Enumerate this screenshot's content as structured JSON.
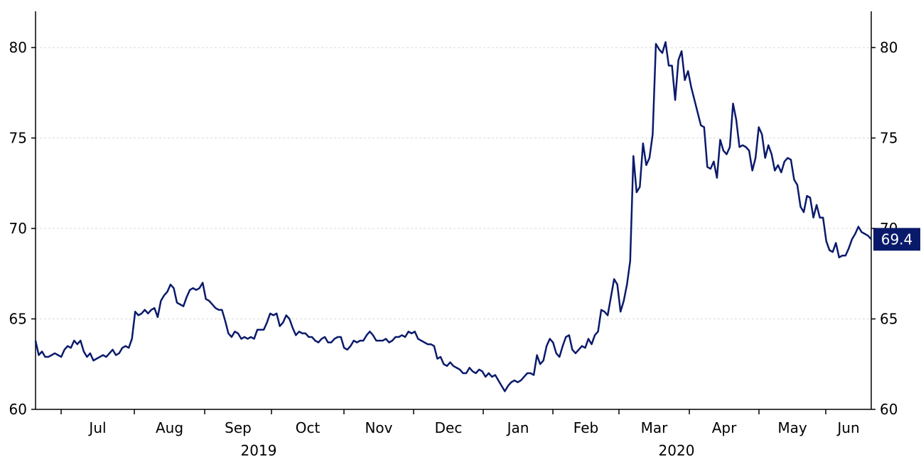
{
  "chart_data": {
    "type": "line",
    "title": "",
    "xlabel": "",
    "ylabel": "",
    "ylim": [
      60,
      82
    ],
    "y_ticks": [
      60,
      65,
      70,
      75,
      80
    ],
    "grid": true,
    "x_month_labels": [
      "Jul",
      "Aug",
      "Sep",
      "Oct",
      "Nov",
      "Dec",
      "Jan",
      "Feb",
      "Mar",
      "Apr",
      "May",
      "Jun"
    ],
    "x_year_labels": [
      "2019",
      "2020"
    ],
    "last_value_label": "69.4",
    "series": [
      {
        "color": "#0a1a6b",
        "values": [
          63.8,
          63.0,
          63.2,
          62.9,
          62.9,
          63.0,
          63.1,
          63.0,
          62.9,
          63.3,
          63.5,
          63.4,
          63.8,
          63.6,
          63.8,
          63.2,
          62.9,
          63.1,
          62.7,
          62.8,
          62.9,
          63.0,
          62.9,
          63.1,
          63.3,
          63.0,
          63.1,
          63.4,
          63.5,
          63.4,
          63.9,
          65.4,
          65.2,
          65.3,
          65.5,
          65.3,
          65.5,
          65.6,
          65.1,
          66.0,
          66.3,
          66.5,
          66.9,
          66.7,
          65.9,
          65.8,
          65.7,
          66.2,
          66.6,
          66.7,
          66.6,
          66.7,
          67.0,
          66.1,
          66.0,
          65.8,
          65.6,
          65.5,
          65.5,
          64.9,
          64.2,
          64.0,
          64.3,
          64.2,
          63.9,
          64.0,
          63.9,
          64.0,
          63.9,
          64.4,
          64.4,
          64.4,
          64.8,
          65.3,
          65.2,
          65.3,
          64.6,
          64.8,
          65.2,
          65.0,
          64.5,
          64.1,
          64.3,
          64.2,
          64.2,
          64.0,
          64.0,
          63.8,
          63.7,
          63.9,
          64.0,
          63.7,
          63.7,
          63.9,
          64.0,
          64.0,
          63.4,
          63.3,
          63.5,
          63.8,
          63.7,
          63.8,
          63.8,
          64.1,
          64.3,
          64.1,
          63.8,
          63.8,
          63.8,
          63.9,
          63.7,
          63.8,
          64.0,
          64.0,
          64.1,
          64.0,
          64.3,
          64.2,
          64.3,
          63.9,
          63.8,
          63.7,
          63.6,
          63.6,
          63.5,
          62.8,
          62.9,
          62.5,
          62.4,
          62.6,
          62.4,
          62.3,
          62.2,
          62.0,
          62.0,
          62.3,
          62.1,
          62.0,
          62.2,
          62.1,
          61.8,
          62.0,
          61.8,
          61.9,
          61.6,
          61.3,
          61.0,
          61.3,
          61.5,
          61.6,
          61.5,
          61.6,
          61.8,
          62.0,
          62.0,
          61.9,
          63.0,
          62.5,
          62.7,
          63.5,
          63.9,
          63.7,
          63.1,
          62.9,
          63.5,
          64.0,
          64.1,
          63.3,
          63.1,
          63.3,
          63.5,
          63.4,
          63.9,
          63.6,
          64.1,
          64.3,
          65.5,
          65.4,
          65.2,
          66.2,
          67.2,
          66.9,
          65.4,
          66.0,
          66.9,
          68.2,
          74.0,
          72.0,
          72.3,
          74.7,
          73.5,
          73.9,
          75.2,
          80.2,
          79.9,
          79.7,
          80.3,
          79.0,
          79.0,
          77.1,
          79.3,
          79.8,
          78.2,
          78.7,
          77.8,
          77.1,
          76.4,
          75.7,
          75.6,
          73.4,
          73.3,
          73.7,
          72.8,
          74.9,
          74.3,
          74.1,
          74.5,
          76.9,
          76.0,
          74.5,
          74.6,
          74.5,
          74.3,
          73.2,
          73.9,
          75.6,
          75.2,
          73.9,
          74.6,
          74.1,
          73.2,
          73.5,
          73.1,
          73.7,
          73.9,
          73.8,
          72.7,
          72.4,
          71.2,
          70.9,
          71.8,
          71.7,
          70.6,
          71.3,
          70.6,
          70.6,
          69.3,
          68.8,
          68.7,
          69.2,
          68.4,
          68.5,
          68.5,
          68.9,
          69.4,
          69.7,
          70.1,
          69.8,
          69.7,
          69.6,
          69.4
        ]
      }
    ]
  }
}
